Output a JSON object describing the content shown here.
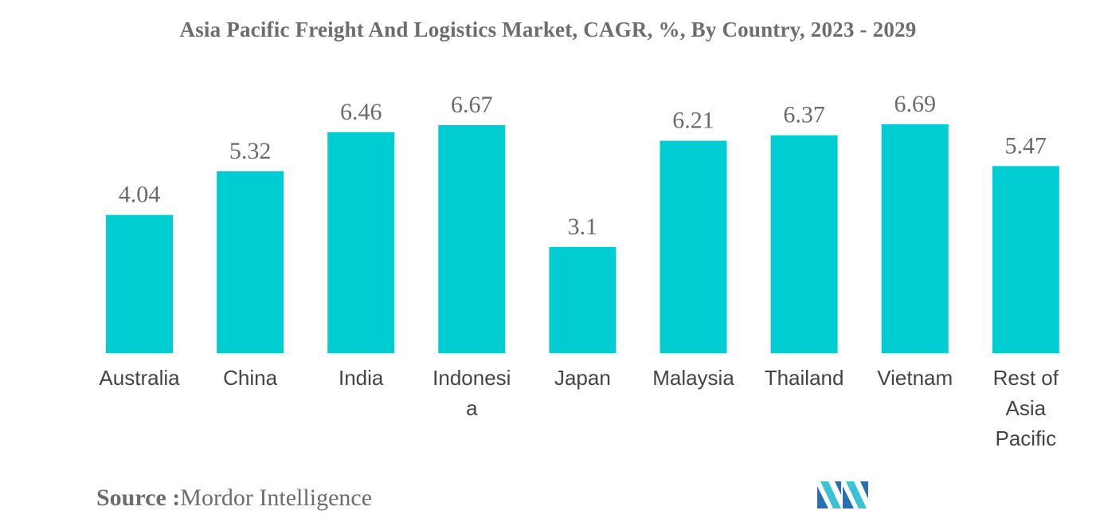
{
  "source": {
    "label": "Source :",
    "text": "Mordor Intelligence"
  },
  "colors": {
    "bar": "#00CDD1",
    "logo_light": "#3AC3D4",
    "logo_dark": "#2A6FB0"
  },
  "chart_data": {
    "type": "bar",
    "title": "Asia Pacific Freight And Logistics Market, CAGR, %, By Country, 2023 - 2029",
    "categories": [
      "Australia",
      "China",
      "India",
      "Indonesia",
      "Japan",
      "Malaysia",
      "Thailand",
      "Vietnam",
      "Rest of Asia Pacific"
    ],
    "category_lines": [
      [
        "Australia"
      ],
      [
        "China"
      ],
      [
        "India"
      ],
      [
        "Indonesi",
        "a"
      ],
      [
        "Japan"
      ],
      [
        "Malaysia"
      ],
      [
        "Thailand"
      ],
      [
        "Vietnam"
      ],
      [
        "Rest of",
        "Asia",
        "Pacific"
      ]
    ],
    "values": [
      4.04,
      5.32,
      6.46,
      6.67,
      3.1,
      6.21,
      6.37,
      6.69,
      5.47
    ],
    "value_labels": [
      "4.04",
      "5.32",
      "6.46",
      "6.67",
      "3.1",
      "6.21",
      "6.37",
      "6.69",
      "5.47"
    ],
    "xlabel": "",
    "ylabel": "",
    "ylim": [
      0,
      6.69
    ],
    "grid": false,
    "legend": "none"
  }
}
